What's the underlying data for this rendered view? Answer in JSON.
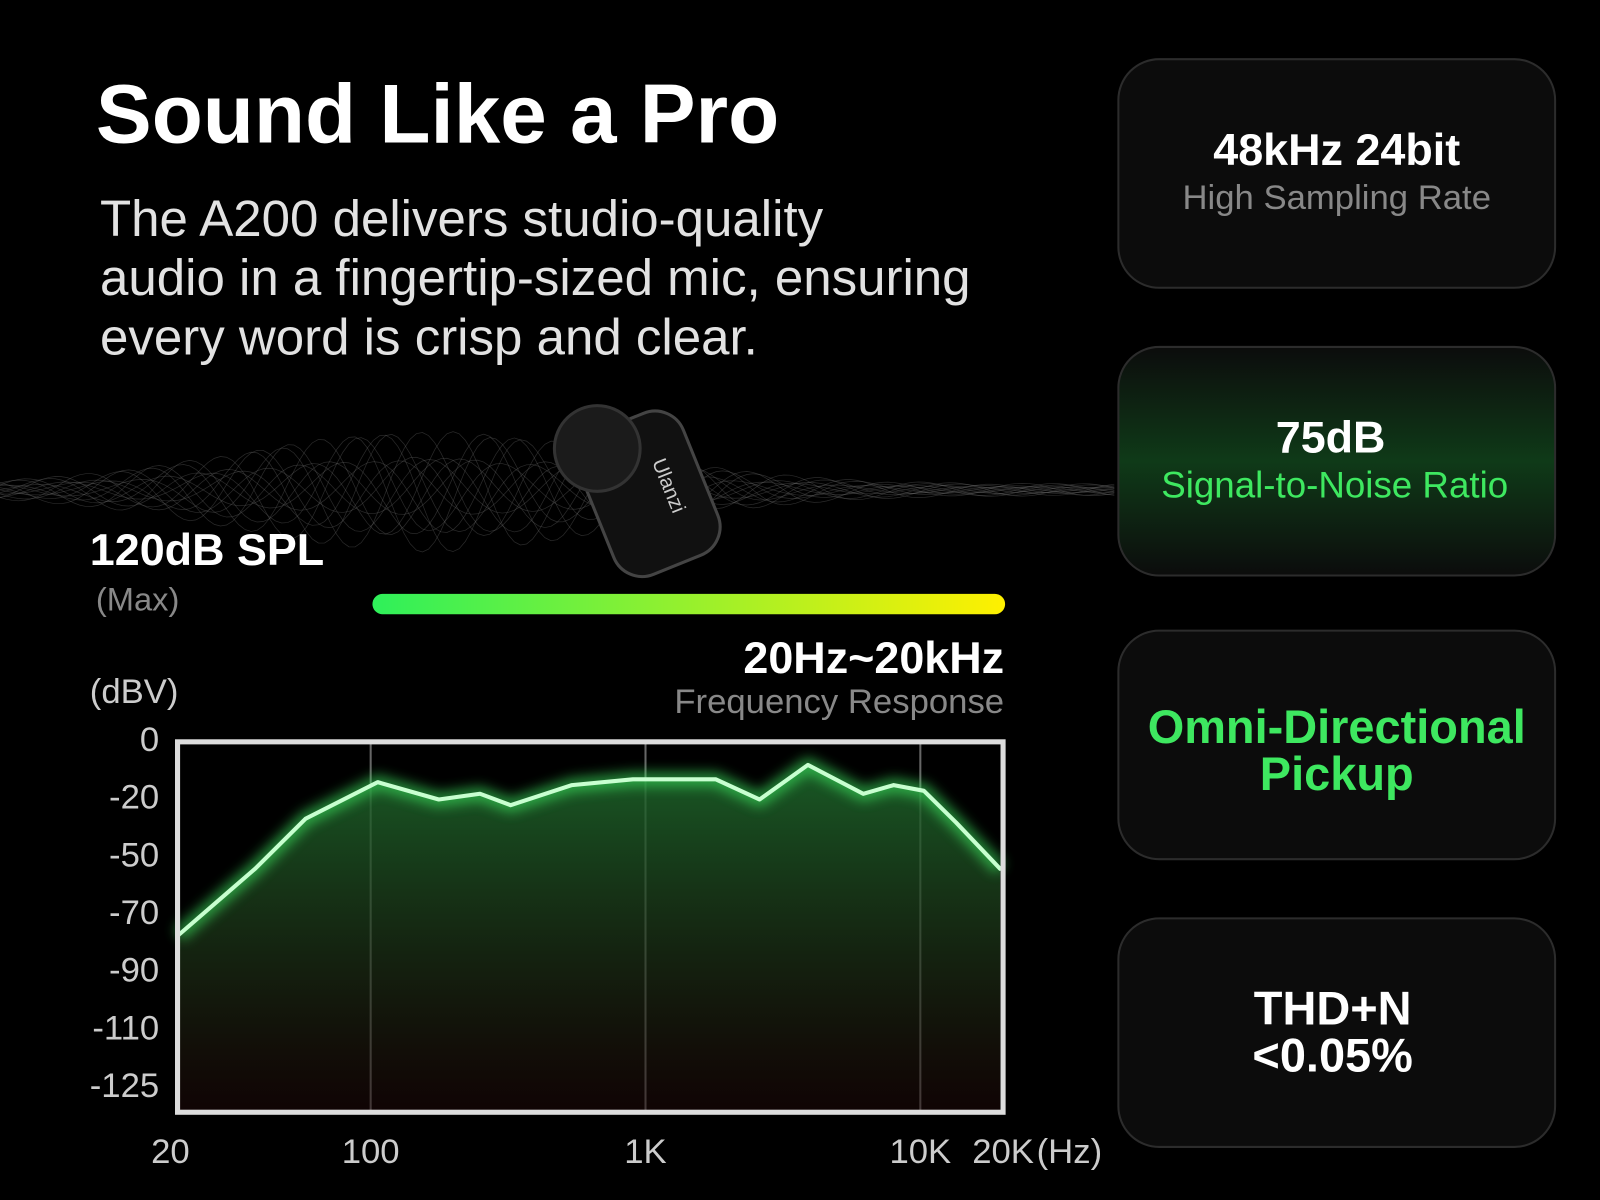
{
  "header": {
    "title": "Sound Like a Pro",
    "description": [
      "The A200 delivers studio-quality",
      "audio in a fingertip-sized mic, ensuring",
      "every word is crisp and clear."
    ]
  },
  "mic_brand": "Ulanzi",
  "spl": {
    "value": "120dB SPL",
    "note": "(Max)"
  },
  "frequency": {
    "value": "20Hz~20kHz",
    "label": "Frequency Response"
  },
  "specs": [
    {
      "lines": [
        "48kHz 24bit",
        "High Sampling Rate"
      ]
    },
    {
      "lines": [
        "75dB",
        "Signal-to-Noise Ratio"
      ]
    },
    {
      "lines": [
        "Omni-Directional",
        "Pickup"
      ]
    },
    {
      "lines": [
        "THD+N",
        "<0.05%"
      ]
    }
  ],
  "chart_data": {
    "type": "line",
    "x_label": "(Hz)",
    "y_label": "(dBV)",
    "xscale": "log",
    "grid": true,
    "color": "#3ee860",
    "x": [
      20,
      38,
      58,
      106,
      177,
      250,
      323,
      540,
      900,
      1800,
      2600,
      3900,
      6200,
      8000,
      10300,
      13500,
      19500
    ],
    "values": [
      -77,
      -54,
      -30,
      -14,
      -20,
      -18,
      -23,
      -15,
      -13,
      -13,
      -20,
      -8,
      -18,
      -15,
      -17,
      -32,
      -54
    ],
    "xlim": [
      20,
      20000
    ],
    "xticks": [
      20,
      100,
      {
        "value": 1000,
        "label": "1K"
      },
      {
        "value": 10000,
        "label": "10K"
      },
      {
        "value": 20000,
        "label": "20K"
      }
    ],
    "ylim": [
      -131,
      0
    ],
    "yticks": [
      0,
      -20,
      -50,
      -70,
      -90,
      -110,
      -125
    ]
  }
}
